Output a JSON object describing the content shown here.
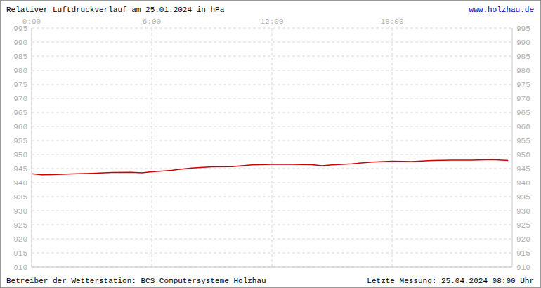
{
  "chart_data": {
    "type": "line",
    "title": "Relativer Luftdruckverlauf am 25.01.2024 in hPa",
    "annotations": [
      "www.holzhau.de",
      "Betreiber der Wetterstation: BCS Computersysteme Holzhau",
      "Letzte Messung: 25.04.2024 08:00 Uhr"
    ],
    "x": [
      0,
      0.5,
      1,
      2,
      3,
      4,
      5,
      5.5,
      6,
      7,
      8,
      9,
      10,
      11,
      12,
      13,
      14,
      14.5,
      15,
      16,
      17,
      18,
      19,
      20,
      21,
      22,
      23,
      23.8
    ],
    "series": [
      {
        "name": "Luftdruck",
        "color": "#cc0000",
        "values": [
          943.2,
          942.8,
          942.9,
          943.1,
          943.3,
          943.6,
          943.7,
          943.5,
          943.9,
          944.4,
          945.2,
          945.6,
          945.7,
          946.3,
          946.5,
          946.5,
          946.4,
          946.0,
          946.3,
          946.7,
          947.3,
          947.6,
          947.5,
          947.9,
          948.0,
          948.0,
          948.2,
          947.9
        ]
      }
    ],
    "xlim": [
      0,
      24
    ],
    "xticks": [
      {
        "value": 0,
        "label": "0:00"
      },
      {
        "value": 6,
        "label": "6:00"
      },
      {
        "value": 12,
        "label": "12:00"
      },
      {
        "value": 18,
        "label": "18:00"
      }
    ],
    "ylim": [
      910,
      995
    ],
    "yticks": [
      910,
      915,
      920,
      925,
      930,
      935,
      940,
      945,
      950,
      955,
      960,
      965,
      970,
      975,
      980,
      985,
      990,
      995
    ],
    "grid": true
  }
}
